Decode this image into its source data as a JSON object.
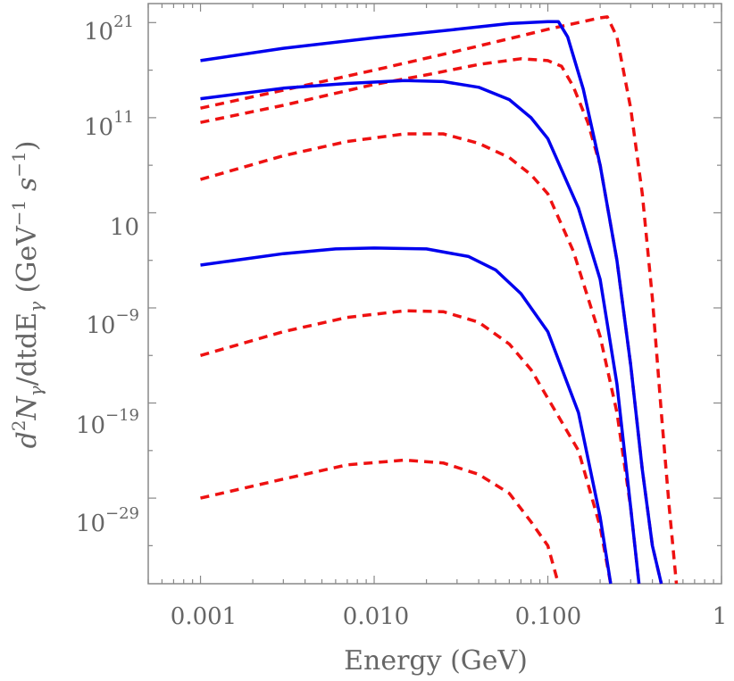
{
  "chart_data": {
    "type": "line",
    "title": "",
    "xlabel": "Energy (GeV)",
    "ylabel_parts": {
      "d": "d",
      "sup2": "2",
      "N": "N",
      "gamma_sub": "γ",
      "rest": "/dtdE",
      "gamma_sub2": "γ",
      "unit_open": " (GeV",
      "unit_exp1": "−1",
      "unit_mid": " s",
      "unit_exp2": "−1",
      "unit_close": ")"
    },
    "x_scale": "log",
    "y_scale": "log",
    "xlim": [
      0.0005,
      1
    ],
    "ylim_log10": [
      -38,
      23
    ],
    "x_ticks": [
      {
        "value": 0.001,
        "label": "0.001"
      },
      {
        "value": 0.01,
        "label": "0.010"
      },
      {
        "value": 0.1,
        "label": "0.100"
      },
      {
        "value": 1,
        "label": "1"
      }
    ],
    "y_ticks": [
      {
        "log10": 21,
        "base": "10",
        "exp": "21"
      },
      {
        "log10": 11,
        "base": "10",
        "exp": "11"
      },
      {
        "log10": 1,
        "base": "10",
        "exp": ""
      },
      {
        "log10": -9,
        "base": "10",
        "exp": "−9"
      },
      {
        "log10": -19,
        "base": "10",
        "exp": "−19"
      },
      {
        "log10": -29,
        "base": "10",
        "exp": "−29"
      }
    ],
    "series": [
      {
        "name": "blue-1",
        "color": "#0000ee",
        "style": "solid",
        "points": [
          [
            0.001,
            17.0
          ],
          [
            0.003,
            18.3
          ],
          [
            0.01,
            19.4
          ],
          [
            0.03,
            20.3
          ],
          [
            0.06,
            20.9
          ],
          [
            0.1,
            21.1
          ],
          [
            0.115,
            21.1
          ],
          [
            0.13,
            19.5
          ],
          [
            0.16,
            14.0
          ],
          [
            0.2,
            6.0
          ],
          [
            0.25,
            -4.0
          ],
          [
            0.3,
            -15.0
          ],
          [
            0.35,
            -26.0
          ],
          [
            0.4,
            -34.0
          ],
          [
            0.45,
            -38.0
          ]
        ]
      },
      {
        "name": "blue-2",
        "color": "#0000ee",
        "style": "solid",
        "points": [
          [
            0.001,
            13.0
          ],
          [
            0.003,
            14.1
          ],
          [
            0.007,
            14.6
          ],
          [
            0.015,
            14.9
          ],
          [
            0.025,
            14.8
          ],
          [
            0.04,
            14.2
          ],
          [
            0.06,
            12.9
          ],
          [
            0.08,
            11.0
          ],
          [
            0.1,
            8.8
          ],
          [
            0.15,
            1.5
          ],
          [
            0.2,
            -6.0
          ],
          [
            0.25,
            -17.0
          ],
          [
            0.3,
            -30.0
          ],
          [
            0.335,
            -38.0
          ]
        ]
      },
      {
        "name": "blue-3",
        "color": "#0000ee",
        "style": "solid",
        "points": [
          [
            0.001,
            -4.5
          ],
          [
            0.003,
            -3.3
          ],
          [
            0.006,
            -2.8
          ],
          [
            0.01,
            -2.7
          ],
          [
            0.02,
            -2.8
          ],
          [
            0.035,
            -3.6
          ],
          [
            0.05,
            -5.0
          ],
          [
            0.07,
            -7.5
          ],
          [
            0.1,
            -11.5
          ],
          [
            0.15,
            -20.0
          ],
          [
            0.2,
            -31.0
          ],
          [
            0.23,
            -38.0
          ]
        ]
      },
      {
        "name": "red-1",
        "color": "#ee1111",
        "style": "dashed",
        "points": [
          [
            0.001,
            12.0
          ],
          [
            0.003,
            13.9
          ],
          [
            0.01,
            16.0
          ],
          [
            0.03,
            18.0
          ],
          [
            0.07,
            19.6
          ],
          [
            0.1,
            20.3
          ],
          [
            0.15,
            21.0
          ],
          [
            0.2,
            21.5
          ],
          [
            0.22,
            21.6
          ],
          [
            0.25,
            19.5
          ],
          [
            0.3,
            12.0
          ],
          [
            0.35,
            3.0
          ],
          [
            0.4,
            -8.0
          ],
          [
            0.45,
            -20.0
          ],
          [
            0.5,
            -30.0
          ],
          [
            0.55,
            -38.0
          ]
        ]
      },
      {
        "name": "red-2",
        "color": "#ee1111",
        "style": "dashed",
        "points": [
          [
            0.001,
            10.5
          ],
          [
            0.003,
            12.3
          ],
          [
            0.01,
            14.5
          ],
          [
            0.02,
            15.5
          ],
          [
            0.04,
            16.6
          ],
          [
            0.07,
            17.2
          ],
          [
            0.1,
            17.0
          ],
          [
            0.12,
            16.4
          ],
          [
            0.14,
            14.3
          ],
          [
            0.17,
            10.5
          ],
          [
            0.2,
            6.0
          ],
          [
            0.25,
            -4.0
          ],
          [
            0.3,
            -15.0
          ],
          [
            0.35,
            -26.0
          ],
          [
            0.4,
            -34.0
          ],
          [
            0.45,
            -38.0
          ]
        ]
      },
      {
        "name": "red-3",
        "color": "#ee1111",
        "style": "dashed",
        "points": [
          [
            0.001,
            4.5
          ],
          [
            0.003,
            7.0
          ],
          [
            0.007,
            8.5
          ],
          [
            0.015,
            9.3
          ],
          [
            0.025,
            9.3
          ],
          [
            0.04,
            8.3
          ],
          [
            0.06,
            6.8
          ],
          [
            0.08,
            5.0
          ],
          [
            0.1,
            3.0
          ],
          [
            0.14,
            -3.0
          ],
          [
            0.2,
            -12.0
          ],
          [
            0.25,
            -20.0
          ],
          [
            0.3,
            -30.0
          ],
          [
            0.335,
            -38.0
          ]
        ]
      },
      {
        "name": "red-4",
        "color": "#ee1111",
        "style": "dashed",
        "points": [
          [
            0.001,
            -14.0
          ],
          [
            0.003,
            -11.5
          ],
          [
            0.007,
            -10.0
          ],
          [
            0.015,
            -9.3
          ],
          [
            0.025,
            -9.4
          ],
          [
            0.04,
            -10.5
          ],
          [
            0.06,
            -12.8
          ],
          [
            0.08,
            -15.5
          ],
          [
            0.1,
            -18.5
          ],
          [
            0.15,
            -24.0
          ],
          [
            0.2,
            -32.0
          ],
          [
            0.23,
            -38.0
          ]
        ]
      },
      {
        "name": "red-5",
        "color": "#ee1111",
        "style": "dashed",
        "points": [
          [
            0.001,
            -29.0
          ],
          [
            0.003,
            -27.0
          ],
          [
            0.007,
            -25.5
          ],
          [
            0.015,
            -25.0
          ],
          [
            0.025,
            -25.3
          ],
          [
            0.04,
            -26.5
          ],
          [
            0.06,
            -28.5
          ],
          [
            0.08,
            -31.5
          ],
          [
            0.1,
            -34.0
          ],
          [
            0.115,
            -38.0
          ]
        ]
      }
    ]
  }
}
